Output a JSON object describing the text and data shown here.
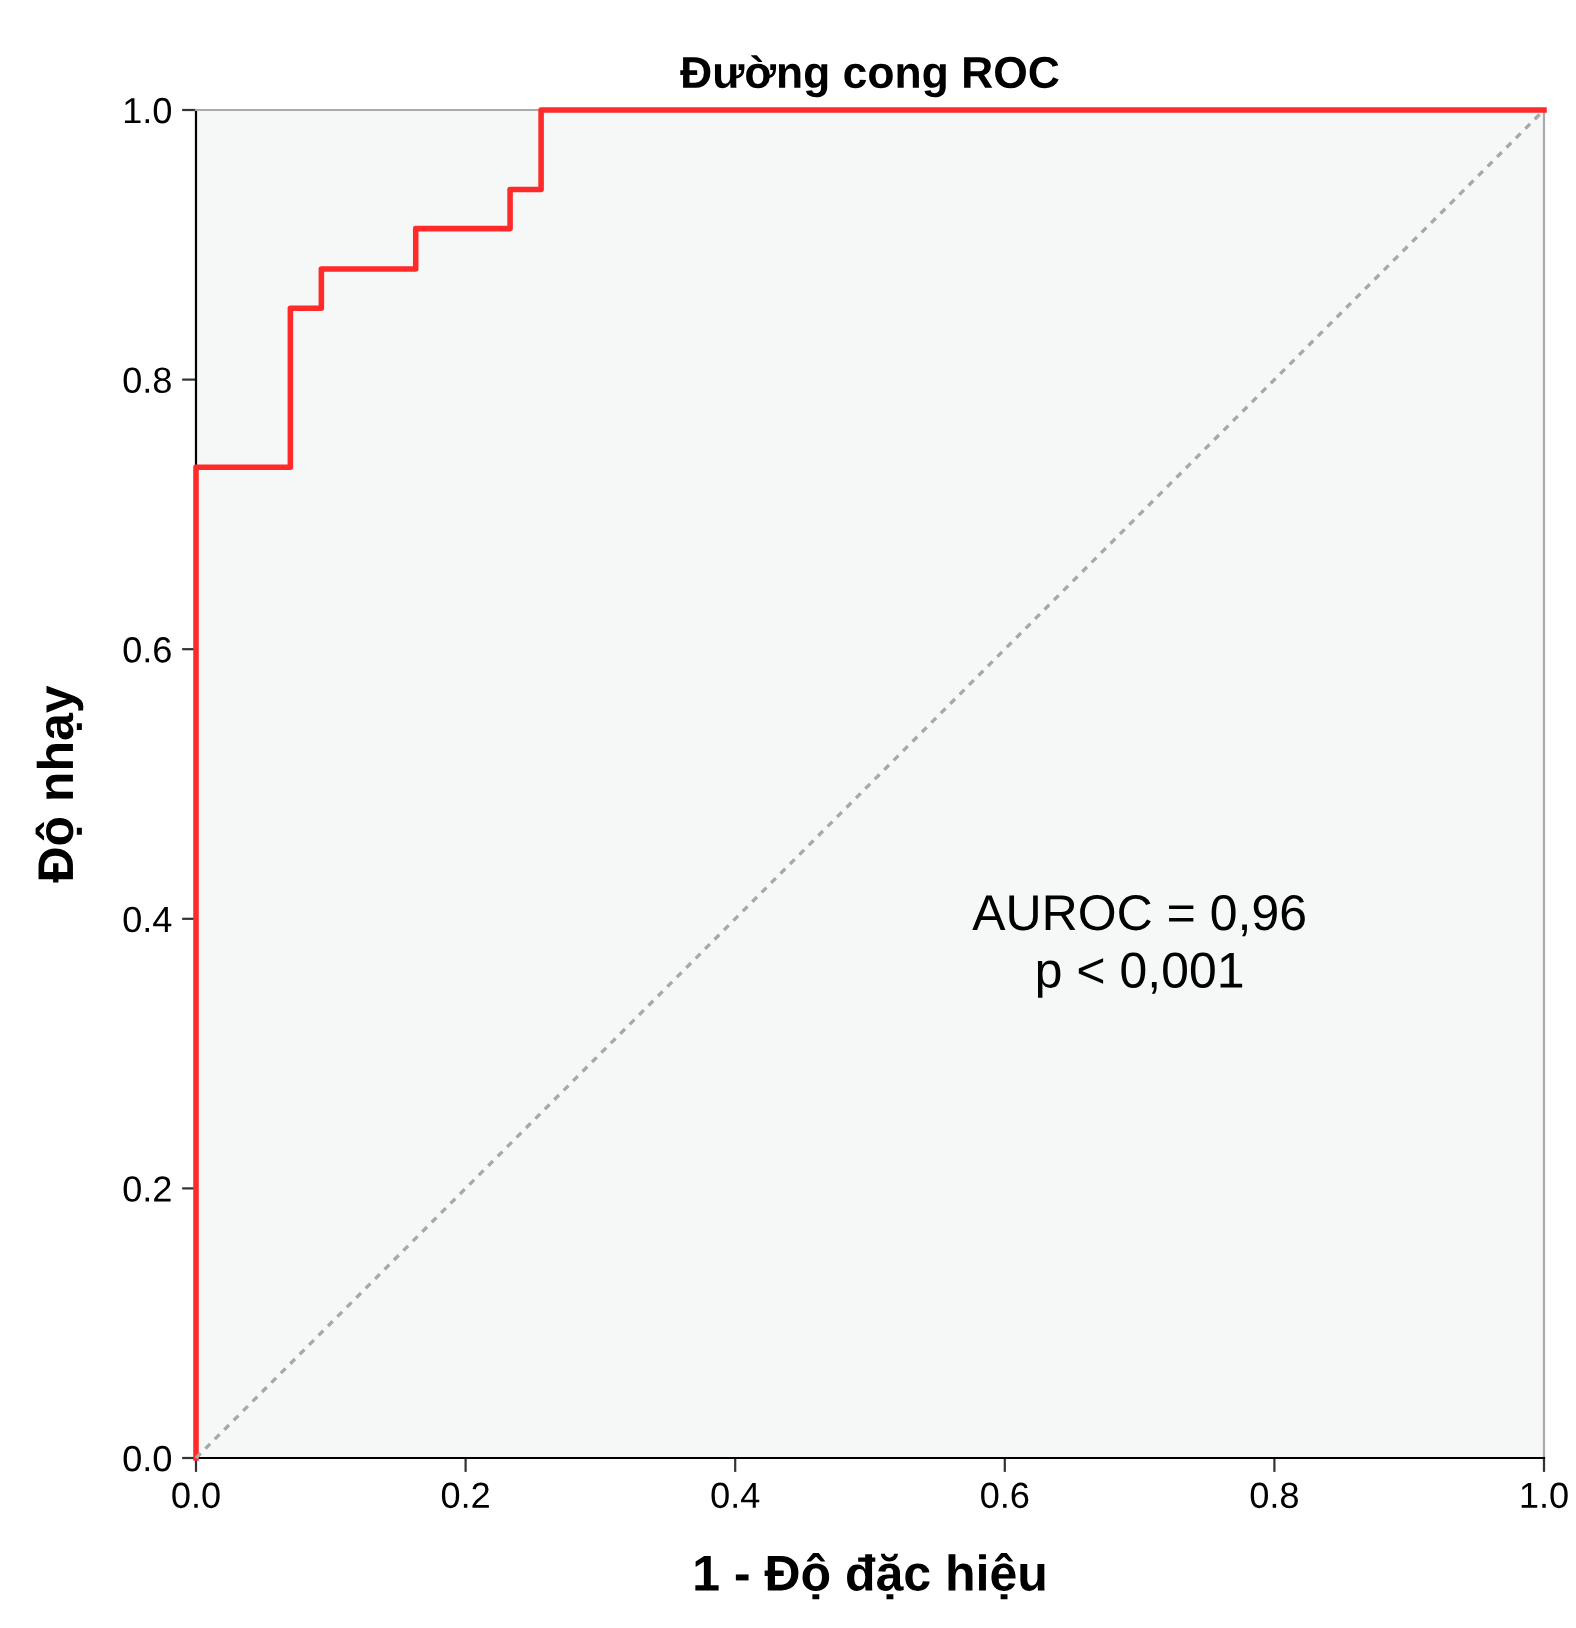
{
  "chart_data": {
    "type": "line",
    "title": "Đường cong ROC",
    "xlabel": "1 - Độ đặc hiệu",
    "ylabel": "Độ nhạy",
    "series": [
      {
        "x": [
          0,
          0,
          0.07,
          0.07,
          0.093,
          0.093,
          0.163,
          0.163,
          0.233,
          0.233,
          0.256,
          0.256,
          1
        ],
        "values": [
          0,
          0.735,
          0.735,
          0.853,
          0.853,
          0.882,
          0.882,
          0.912,
          0.912,
          0.941,
          0.941,
          1,
          1
        ],
        "color": "#ff2a2a",
        "line_style": "solid"
      },
      {
        "x": [
          0,
          1
        ],
        "values": [
          0,
          1
        ],
        "color": "#a8a8a8",
        "line_style": "dotted"
      }
    ],
    "xlim": [
      0,
      1
    ],
    "ylim": [
      0,
      1
    ],
    "xticks": [
      {
        "value": 0,
        "label": "0.0"
      },
      {
        "value": 0.2,
        "label": "0.2"
      },
      {
        "value": 0.4,
        "label": "0.4"
      },
      {
        "value": 0.6,
        "label": "0.6"
      },
      {
        "value": 0.8,
        "label": "0.8"
      },
      {
        "value": 1,
        "label": "1.0"
      }
    ],
    "yticks": [
      {
        "value": 0,
        "label": "0.0"
      },
      {
        "value": 0.2,
        "label": "0.2"
      },
      {
        "value": 0.4,
        "label": "0.4"
      },
      {
        "value": 0.6,
        "label": "0.6"
      },
      {
        "value": 0.8,
        "label": "0.8"
      },
      {
        "value": 1,
        "label": "1.0"
      }
    ],
    "annotations": [
      "AUROC = 0,96\np < 0,001"
    ],
    "grid": false,
    "legend": false,
    "marker": "none"
  }
}
